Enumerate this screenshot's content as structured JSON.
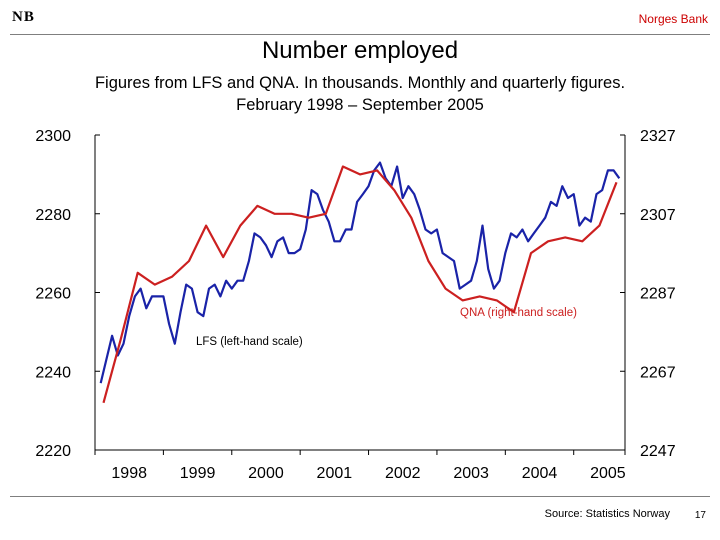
{
  "header": {
    "logo": "NB",
    "bank": "Norges Bank"
  },
  "title": "Number employed",
  "subtitle_line1": "Figures from LFS and QNA. In thousands. Monthly and quarterly figures.",
  "subtitle_line2": "February 1998 – September 2005",
  "source": "Source: Statistics Norway",
  "page_number": "17",
  "chart_data": {
    "type": "line",
    "x_tick_labels": [
      "1998",
      "1999",
      "2000",
      "2001",
      "2002",
      "2003",
      "2004",
      "2005"
    ],
    "x_range": [
      1998.0,
      2005.75
    ],
    "grid": false,
    "y_left": {
      "ticks": [
        "2300",
        "2280",
        "2260",
        "2240",
        "2220"
      ],
      "range": [
        2220,
        2300
      ]
    },
    "y_right": {
      "ticks": [
        "2327",
        "2307",
        "2287",
        "2267",
        "2247"
      ],
      "range": [
        2247,
        2327
      ]
    },
    "annotations": {
      "lfs": "LFS (left-hand scale)",
      "qna": "QNA (right-hand scale)"
    },
    "colors": {
      "lfs": "#1a23a8",
      "qna": "#cc2020",
      "axis": "#000000"
    },
    "series": [
      {
        "name": "LFS (left-hand scale)",
        "axis": "left",
        "x": [
          1998.083,
          1998.167,
          1998.25,
          1998.333,
          1998.417,
          1998.5,
          1998.583,
          1998.667,
          1998.75,
          1998.833,
          1998.917,
          1999.0,
          1999.083,
          1999.167,
          1999.25,
          1999.333,
          1999.417,
          1999.5,
          1999.583,
          1999.667,
          1999.75,
          1999.833,
          1999.917,
          2000.0,
          2000.083,
          2000.167,
          2000.25,
          2000.333,
          2000.417,
          2000.5,
          2000.583,
          2000.667,
          2000.75,
          2000.833,
          2000.917,
          2001.0,
          2001.083,
          2001.167,
          2001.25,
          2001.333,
          2001.417,
          2001.5,
          2001.583,
          2001.667,
          2001.75,
          2001.833,
          2001.917,
          2002.0,
          2002.083,
          2002.167,
          2002.25,
          2002.333,
          2002.417,
          2002.5,
          2002.583,
          2002.667,
          2002.75,
          2002.833,
          2002.917,
          2003.0,
          2003.083,
          2003.167,
          2003.25,
          2003.333,
          2003.417,
          2003.5,
          2003.583,
          2003.667,
          2003.75,
          2003.833,
          2003.917,
          2004.0,
          2004.083,
          2004.167,
          2004.25,
          2004.333,
          2004.417,
          2004.5,
          2004.583,
          2004.667,
          2004.75,
          2004.833,
          2004.917,
          2005.0,
          2005.083,
          2005.167,
          2005.25,
          2005.333,
          2005.417,
          2005.5,
          2005.583,
          2005.667
        ],
        "values": [
          2237,
          2243,
          2249,
          2244,
          2247,
          2254,
          2259,
          2261,
          2256,
          2259,
          2259,
          2259,
          2252,
          2247,
          2255,
          2262,
          2261,
          2255,
          2254,
          2261,
          2262,
          2259,
          2263,
          2261,
          2263,
          2263,
          2268,
          2275,
          2274,
          2272,
          2269,
          2273,
          2274,
          2270,
          2270,
          2271,
          2276,
          2286,
          2285,
          2281,
          2278,
          2273,
          2273,
          2276,
          2276,
          2283,
          2285,
          2287,
          2291,
          2293,
          2289,
          2287,
          2292,
          2284,
          2287,
          2285,
          2281,
          2276,
          2275,
          2276,
          2270,
          2269,
          2268,
          2261,
          2262,
          2263,
          2268,
          2277,
          2266,
          2261,
          2263,
          2270,
          2275,
          2274,
          2276,
          2273,
          2275,
          2277,
          2279,
          2283,
          2282,
          2287,
          2284,
          2285,
          2277,
          2279,
          2278,
          2285,
          2286,
          2291,
          2291,
          2289
        ]
      },
      {
        "name": "QNA (right-hand scale)",
        "axis": "right",
        "x": [
          1998.125,
          1998.375,
          1998.625,
          1998.875,
          1999.125,
          1999.375,
          1999.625,
          1999.875,
          2000.125,
          2000.375,
          2000.625,
          2000.875,
          2001.125,
          2001.375,
          2001.625,
          2001.875,
          2002.125,
          2002.375,
          2002.625,
          2002.875,
          2003.125,
          2003.375,
          2003.625,
          2003.875,
          2004.125,
          2004.375,
          2004.625,
          2004.875,
          2005.125,
          2005.375,
          2005.625
        ],
        "values": [
          2259,
          2275,
          2292,
          2289,
          2291,
          2295,
          2304,
          2296,
          2304,
          2309,
          2307,
          2307,
          2306,
          2307,
          2319,
          2317,
          2318,
          2313,
          2306,
          2295,
          2288,
          2285,
          2286,
          2285,
          2282,
          2297,
          2300,
          2301,
          2300,
          2304,
          2315
        ]
      }
    ]
  }
}
